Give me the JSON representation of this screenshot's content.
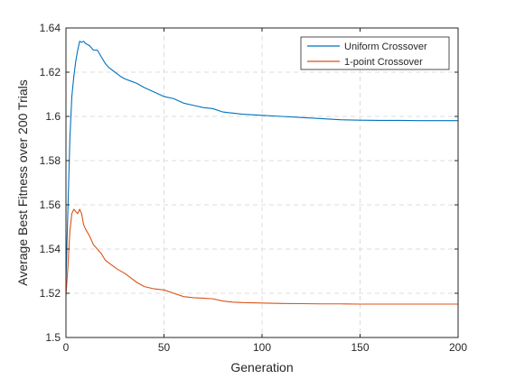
{
  "chart_data": {
    "type": "line",
    "xlabel": "Generation",
    "ylabel": "Average Best Fitness over 200 Trials",
    "xlim": [
      0,
      200
    ],
    "ylim": [
      1.5,
      1.64
    ],
    "xticks": [
      0,
      50,
      100,
      150,
      200
    ],
    "yticks": [
      1.5,
      1.52,
      1.54,
      1.56,
      1.58,
      1.6,
      1.62,
      1.64
    ],
    "xtick_labels": [
      "0",
      "50",
      "100",
      "150",
      "200"
    ],
    "ytick_labels": [
      "1.5",
      "1.52",
      "1.54",
      "1.56",
      "1.58",
      "1.6",
      "1.62",
      "1.64"
    ],
    "grid": true,
    "legend": "top-right",
    "series": [
      {
        "name": "Uniform Crossover",
        "color": "#0072BD",
        "x": [
          0,
          1,
          2,
          3,
          4,
          5,
          6,
          7,
          8,
          9,
          10,
          12,
          14,
          16,
          18,
          20,
          22,
          25,
          28,
          30,
          33,
          36,
          40,
          45,
          50,
          55,
          60,
          65,
          70,
          75,
          80,
          85,
          90,
          100,
          110,
          120,
          130,
          140,
          150,
          160,
          170,
          180,
          190,
          200
        ],
        "y": [
          1.526,
          1.558,
          1.59,
          1.609,
          1.618,
          1.625,
          1.63,
          1.634,
          1.6335,
          1.634,
          1.633,
          1.632,
          1.63,
          1.63,
          1.627,
          1.624,
          1.622,
          1.62,
          1.618,
          1.617,
          1.616,
          1.615,
          1.613,
          1.611,
          1.609,
          1.608,
          1.606,
          1.605,
          1.604,
          1.6035,
          1.602,
          1.6015,
          1.601,
          1.6005,
          1.6,
          1.5995,
          1.599,
          1.5985,
          1.5983,
          1.5982,
          1.5982,
          1.5981,
          1.5981,
          1.5981
        ]
      },
      {
        "name": "1-point Crossover",
        "color": "#D95319",
        "x": [
          0,
          1,
          2,
          3,
          4,
          5,
          6,
          7,
          8,
          9,
          10,
          12,
          14,
          16,
          18,
          20,
          23,
          26,
          30,
          33,
          36,
          40,
          45,
          50,
          55,
          60,
          65,
          70,
          75,
          80,
          85,
          90,
          100,
          110,
          120,
          130,
          140,
          150,
          160,
          170,
          180,
          190,
          200
        ],
        "y": [
          1.519,
          1.532,
          1.548,
          1.556,
          1.558,
          1.557,
          1.556,
          1.558,
          1.556,
          1.551,
          1.549,
          1.546,
          1.542,
          1.54,
          1.538,
          1.535,
          1.533,
          1.531,
          1.529,
          1.527,
          1.525,
          1.523,
          1.522,
          1.5215,
          1.52,
          1.5185,
          1.518,
          1.5178,
          1.5175,
          1.5165,
          1.516,
          1.5158,
          1.5156,
          1.5154,
          1.5153,
          1.5152,
          1.5152,
          1.5151,
          1.5151,
          1.5151,
          1.5151,
          1.5151,
          1.5151
        ]
      }
    ]
  }
}
